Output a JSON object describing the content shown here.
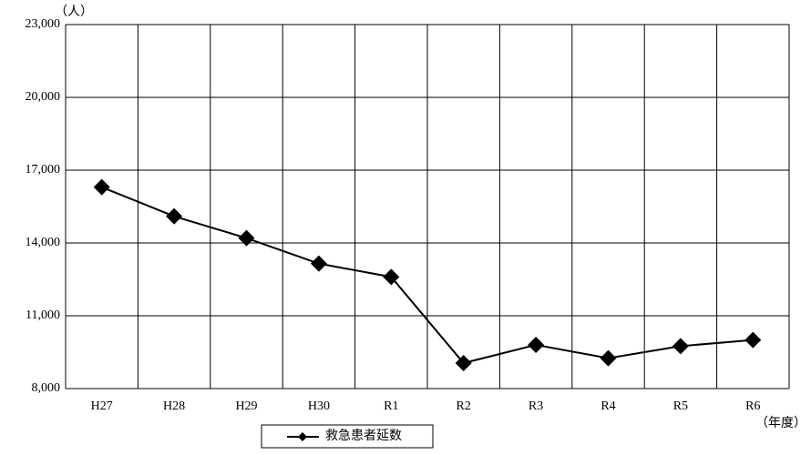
{
  "chart_data": {
    "type": "line",
    "y_unit": "（人）",
    "x_unit": "（年度）",
    "categories": [
      "H27",
      "H28",
      "H29",
      "H30",
      "R1",
      "R2",
      "R3",
      "R4",
      "R5",
      "R6"
    ],
    "series": [
      {
        "name": "救急患者延数",
        "color": "#000000",
        "values": [
          16300,
          15100,
          14200,
          13150,
          12600,
          9050,
          9800,
          9250,
          9750,
          10000
        ]
      }
    ],
    "ylim": [
      8000,
      23000
    ],
    "yticks": [
      {
        "value": 8000,
        "label": "8,000"
      },
      {
        "value": 11000,
        "label": "11,000"
      },
      {
        "value": 14000,
        "label": "14,000"
      },
      {
        "value": 17000,
        "label": "17,000"
      },
      {
        "value": 20000,
        "label": "20,000"
      },
      {
        "value": 23000,
        "label": "23,000"
      }
    ],
    "grid": true,
    "legend": "bottom"
  }
}
